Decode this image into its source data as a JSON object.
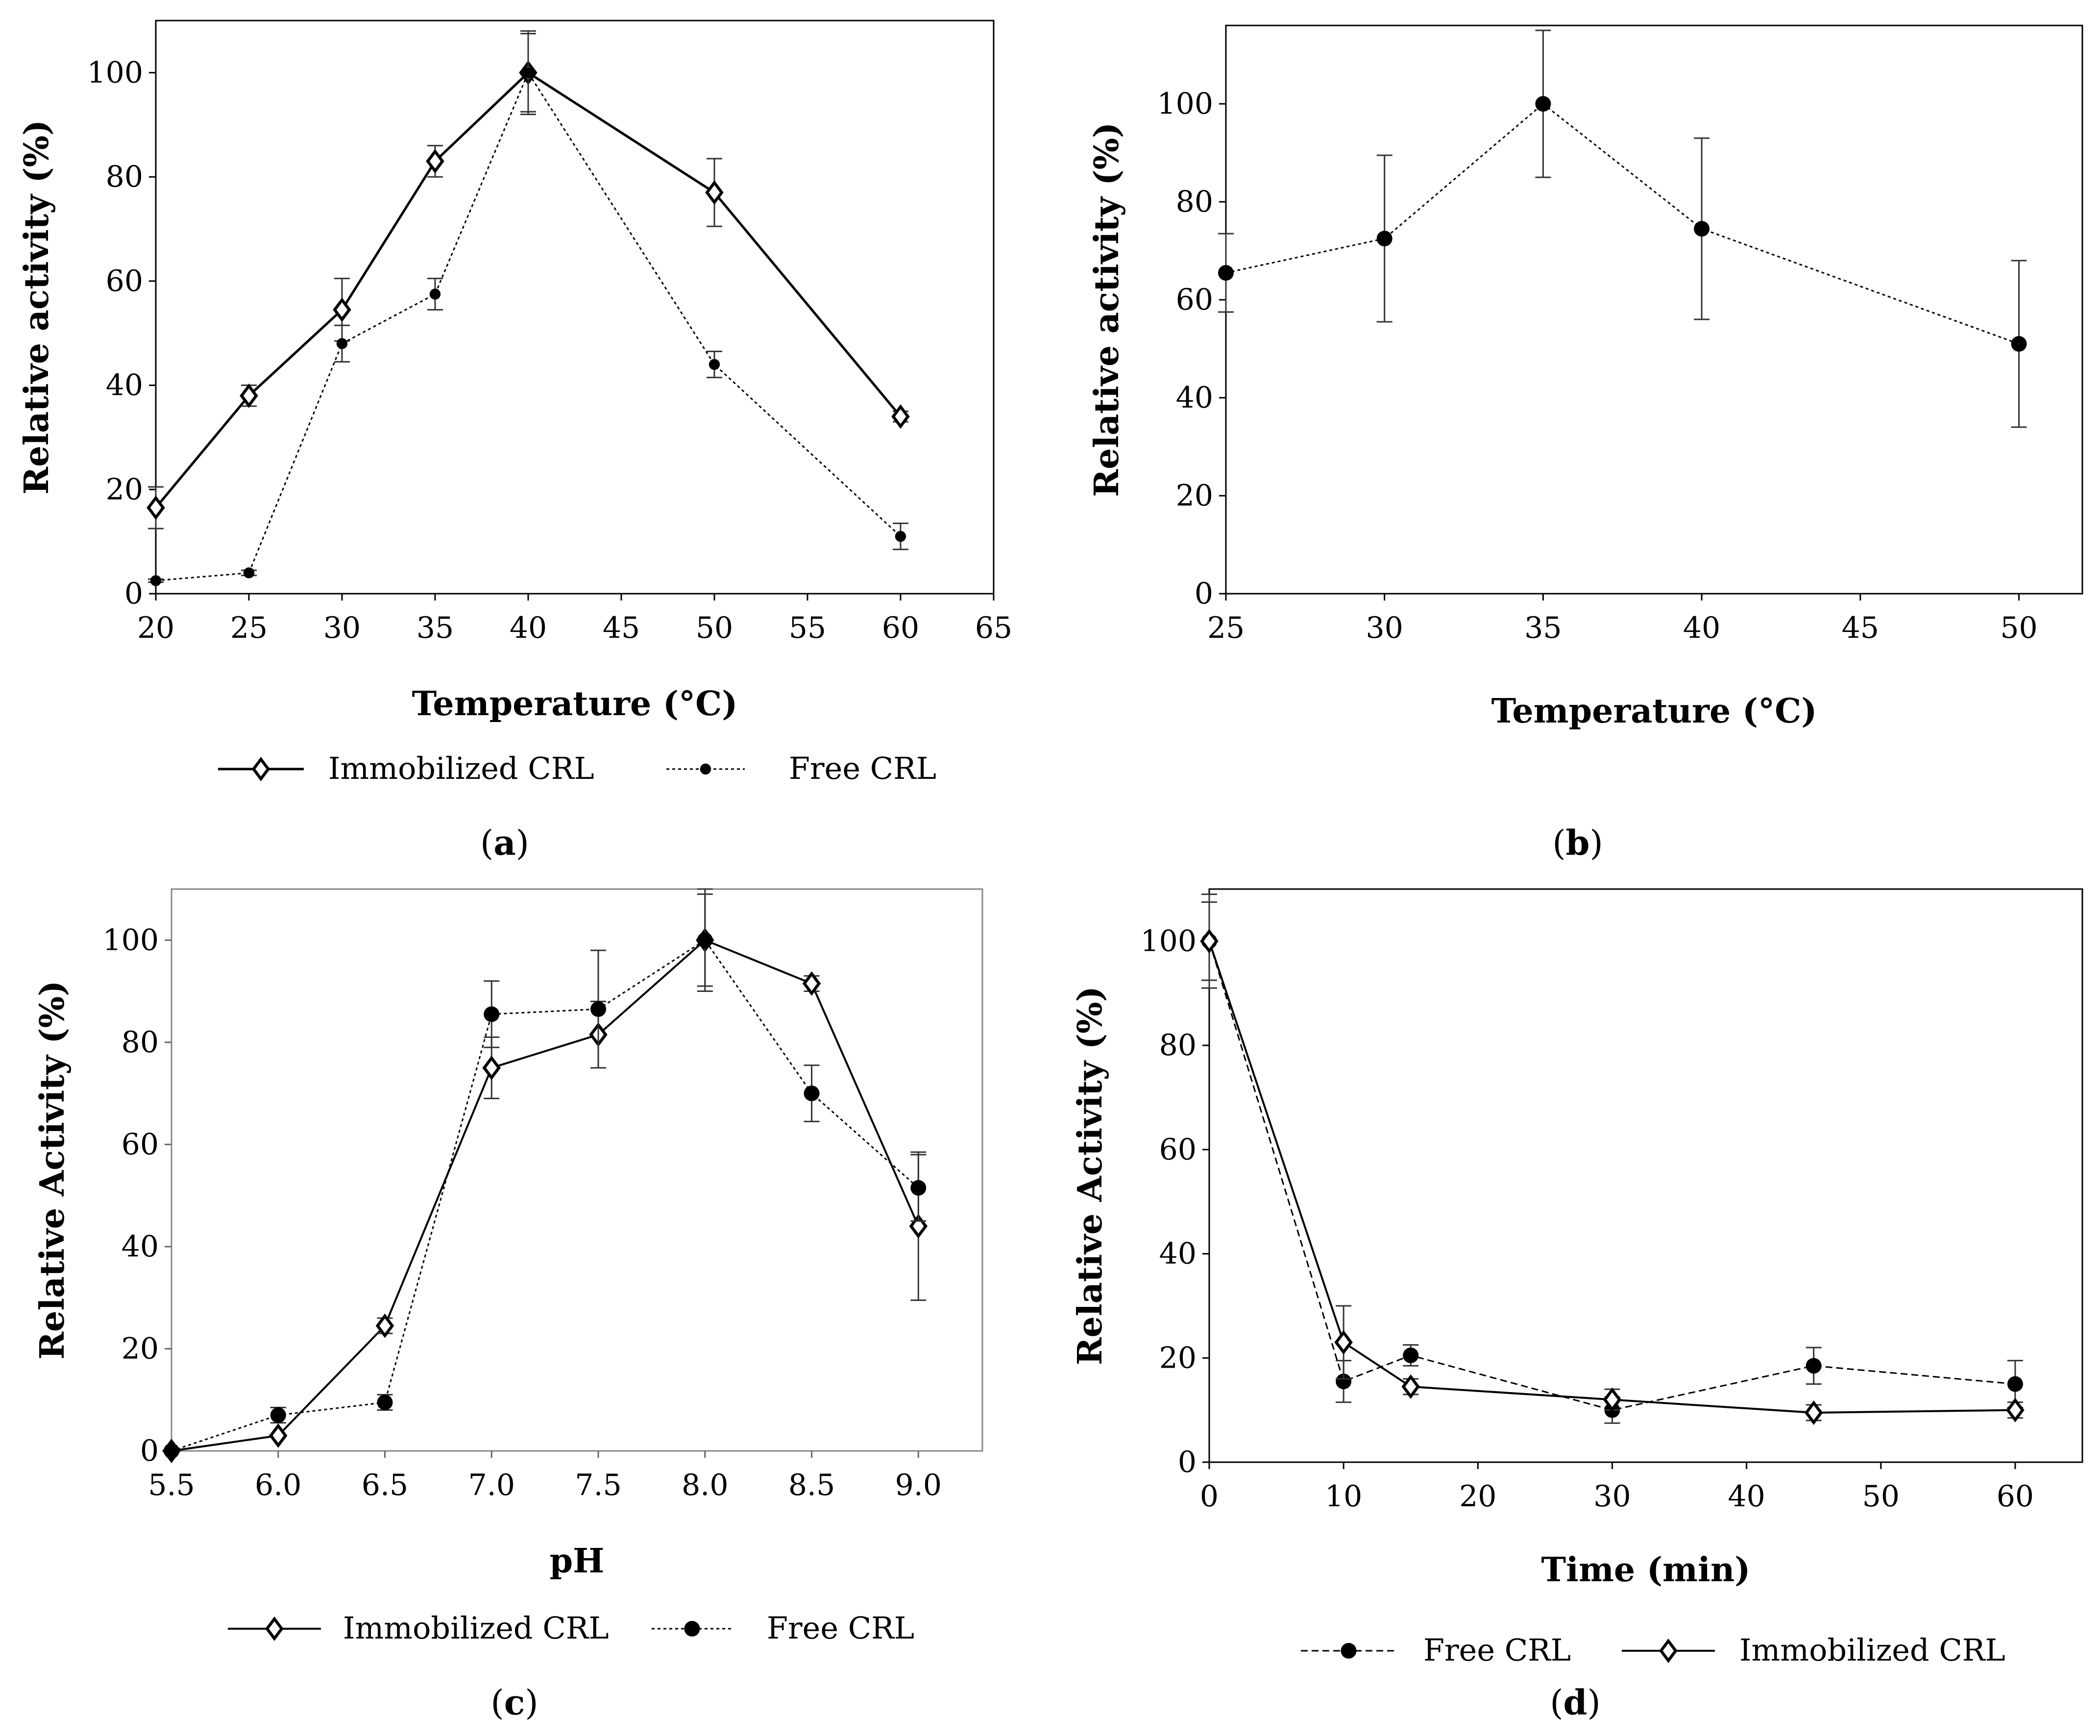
{
  "chart_data": [
    {
      "panel": "a",
      "caption": "a",
      "type": "line",
      "xlabel": "Temperature (°C)",
      "ylabel": "Relative activity (%)",
      "xlim": [
        20,
        65
      ],
      "ylim": [
        0,
        110
      ],
      "xticks": [
        "20",
        "25",
        "30",
        "35",
        "40",
        "45",
        "50",
        "55",
        "60",
        "65"
      ],
      "yticks": [
        "0",
        "20",
        "40",
        "60",
        "80",
        "100"
      ],
      "legend_position": "bottom",
      "series": [
        {
          "name": "Immobilized CRL",
          "style": "solid",
          "marker": "diamond-open",
          "x": [
            20,
            25,
            30,
            35,
            40,
            50,
            60
          ],
          "y": [
            16.5,
            38,
            54.5,
            83,
            100,
            77,
            34
          ],
          "err": [
            4,
            2,
            6,
            3,
            8,
            6.5,
            1
          ]
        },
        {
          "name": "Free CRL",
          "style": "dotted",
          "marker": "circle-filled-small",
          "x": [
            20,
            25,
            30,
            35,
            40,
            50,
            60
          ],
          "y": [
            2.5,
            4,
            48,
            57.5,
            100,
            44,
            11
          ],
          "err": [
            0.3,
            0.5,
            3.5,
            3,
            7.5,
            2.5,
            2.5
          ]
        }
      ]
    },
    {
      "panel": "b",
      "caption": "b",
      "type": "line",
      "xlabel": "Temperature (°C)",
      "ylabel": "Relative activity (%)",
      "xlim": [
        25,
        52
      ],
      "ylim": [
        0,
        116
      ],
      "xticks": [
        "25",
        "30",
        "35",
        "40",
        "45",
        "50"
      ],
      "yticks": [
        "0",
        "20",
        "40",
        "60",
        "80",
        "100"
      ],
      "legend_position": "none",
      "series": [
        {
          "name": "",
          "style": "dotted",
          "marker": "circle-filled",
          "x": [
            25,
            30,
            35,
            40,
            50
          ],
          "y": [
            65.5,
            72.5,
            100,
            74.5,
            51
          ],
          "err": [
            8,
            17,
            15,
            18.5,
            17
          ]
        }
      ]
    },
    {
      "panel": "c",
      "caption": "c",
      "type": "line",
      "xlabel": "pH",
      "ylabel": "Relative Activity (%)",
      "xlim": [
        5.5,
        9.3
      ],
      "ylim": [
        0,
        110
      ],
      "xticks": [
        "5.5",
        "6.0",
        "6.5",
        "7.0",
        "7.5",
        "8.0",
        "8.5",
        "9.0"
      ],
      "yticks": [
        "0",
        "20",
        "40",
        "60",
        "80",
        "100"
      ],
      "legend_position": "bottom",
      "series": [
        {
          "name": "Immobilized CRL",
          "style": "solid",
          "marker": "diamond-open",
          "x": [
            5.5,
            6.0,
            6.5,
            7.0,
            7.5,
            8.0,
            8.5,
            9.0
          ],
          "y": [
            0,
            3,
            24.5,
            75,
            81.5,
            100,
            91.5,
            44
          ],
          "err": [
            0,
            0,
            1.5,
            6,
            6.5,
            9,
            1.5,
            14.5
          ]
        },
        {
          "name": "Free CRL",
          "style": "dotted",
          "marker": "circle-filled",
          "x": [
            5.5,
            6.0,
            6.5,
            7.0,
            7.5,
            8.0,
            8.5,
            9.0
          ],
          "y": [
            0,
            7,
            9.5,
            85.5,
            86.5,
            100,
            70,
            51.5
          ],
          "err": [
            0,
            1.5,
            1.5,
            6.5,
            11.5,
            10,
            5.5,
            6.5
          ]
        }
      ]
    },
    {
      "panel": "d",
      "caption": "d",
      "type": "line",
      "xlabel": "Time (min)",
      "ylabel": "Relative Activity (%)",
      "xlim": [
        0,
        65
      ],
      "ylim": [
        0,
        110
      ],
      "xticks": [
        "0",
        "10",
        "20",
        "30",
        "40",
        "50",
        "60"
      ],
      "yticks": [
        "0",
        "20",
        "40",
        "60",
        "80",
        "100"
      ],
      "legend_position": "bottom",
      "series": [
        {
          "name": "Free CRL",
          "style": "dashed",
          "marker": "circle-filled",
          "x": [
            0,
            10,
            15,
            30,
            45,
            60
          ],
          "y": [
            100,
            15.5,
            20.5,
            10,
            18.5,
            15
          ],
          "err": [
            9,
            4,
            2,
            2.5,
            3.5,
            4.5
          ]
        },
        {
          "name": "Immobilized CRL",
          "style": "solid",
          "marker": "diamond-open",
          "x": [
            0,
            10,
            15,
            30,
            45,
            60
          ],
          "y": [
            100,
            23,
            14.5,
            12,
            9.5,
            10
          ],
          "err": [
            7.5,
            7,
            1.5,
            2,
            1.5,
            1.5
          ]
        }
      ]
    }
  ]
}
